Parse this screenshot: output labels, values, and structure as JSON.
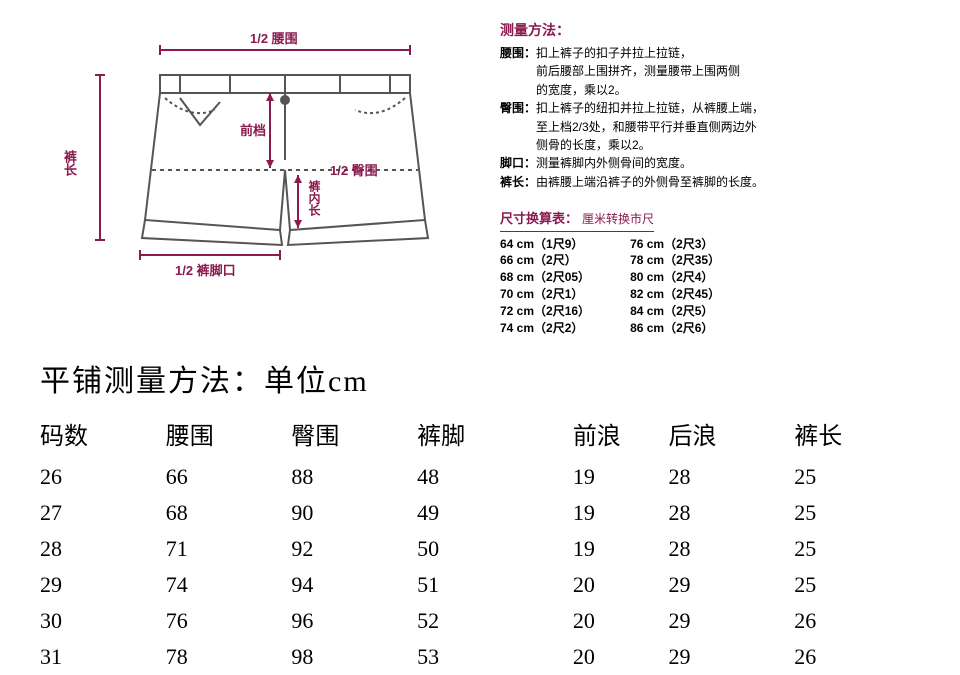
{
  "diagram": {
    "label_waist": "1/2 腰围",
    "label_length": "裤长",
    "label_frontrise": "前档",
    "label_hip": "1/2 臀围",
    "label_inseam": "裤内长",
    "label_hem": "1/2 裤脚口",
    "color_label": "#8b1a4e",
    "color_line": "#666666"
  },
  "method": {
    "title": "测量方法：",
    "lines": [
      "腰围：扣上裤子的扣子并拉上拉链，",
      "　　　前后腰部上围拼齐，测量腰带上围两侧",
      "　　　的宽度，乘以2。",
      "臀围：扣上裤子的纽扣并拉上拉链，从裤腰上端，",
      "　　　至上档2/3处，和腰带平行并垂直侧两边外",
      "　　　侧骨的长度，乘以2。",
      "脚口：测量裤脚内外侧骨间的宽度。",
      "裤长：由裤腰上端沿裤子的外侧骨至裤脚的长度。"
    ]
  },
  "conversion": {
    "title": "尺寸换算表：",
    "note": "厘米转换市尺",
    "left": [
      "64 cm（1尺9）",
      "66 cm（2尺）",
      "68 cm（2尺05）",
      "70 cm（2尺1）",
      "72 cm（2尺16）",
      "74 cm（2尺2）"
    ],
    "right": [
      "76 cm（2尺3）",
      "78 cm（2尺35）",
      "80 cm（2尺4）",
      "82 cm（2尺45）",
      "84 cm（2尺5）",
      "86 cm（2尺6）"
    ]
  },
  "flat": {
    "title": "平铺测量方法：单位cm",
    "columns": [
      "码数",
      "腰围",
      "臀围",
      "裤脚",
      "前浪",
      "后浪",
      "裤长"
    ],
    "rows": [
      [
        "26",
        "66",
        "88",
        "48",
        "19",
        "28",
        "25"
      ],
      [
        "27",
        "68",
        "90",
        "49",
        "19",
        "28",
        "25"
      ],
      [
        "28",
        "71",
        "92",
        "50",
        "19",
        "28",
        "25"
      ],
      [
        "29",
        "74",
        "94",
        "51",
        "20",
        "29",
        "25"
      ],
      [
        "30",
        "76",
        "96",
        "52",
        "20",
        "29",
        "26"
      ],
      [
        "31",
        "78",
        "98",
        "53",
        "20",
        "29",
        "26"
      ]
    ]
  },
  "style": {
    "accent": "#8b1a4e",
    "text": "#000000",
    "background": "#ffffff",
    "title_fontsize": 30,
    "th_fontsize": 24,
    "td_fontsize": 22,
    "info_fontsize": 12
  }
}
